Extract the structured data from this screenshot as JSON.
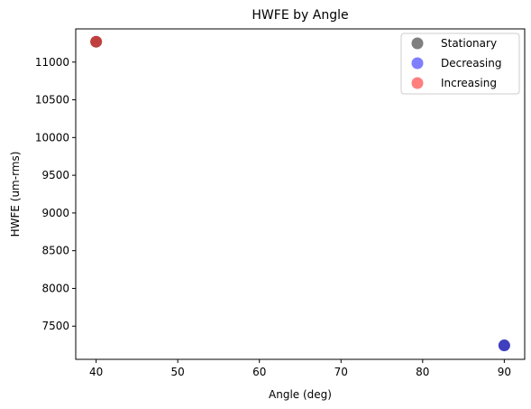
{
  "chart_data": {
    "type": "scatter",
    "title": "HWFE by Angle",
    "xlabel": "Angle (deg)",
    "ylabel": "HWFE (um-rms)",
    "xlim": [
      37.5,
      92.5
    ],
    "ylim": [
      7060,
      11440
    ],
    "xticks": [
      40,
      50,
      60,
      70,
      80,
      90
    ],
    "yticks": [
      7500,
      8000,
      8500,
      9000,
      9500,
      10000,
      10500,
      11000
    ],
    "grid": false,
    "legend_position": "top-right",
    "series": [
      {
        "name": "Stationary",
        "color": "#000000",
        "alpha": 0.5,
        "points": [
          {
            "x": 40,
            "y": 11270
          },
          {
            "x": 90,
            "y": 7245
          }
        ]
      },
      {
        "name": "Decreasing",
        "color": "#0000ff",
        "alpha": 0.5,
        "points": [
          {
            "x": 90,
            "y": 7245
          }
        ]
      },
      {
        "name": "Increasing",
        "color": "#ff0000",
        "alpha": 0.5,
        "points": [
          {
            "x": 40,
            "y": 11270
          }
        ]
      }
    ]
  }
}
